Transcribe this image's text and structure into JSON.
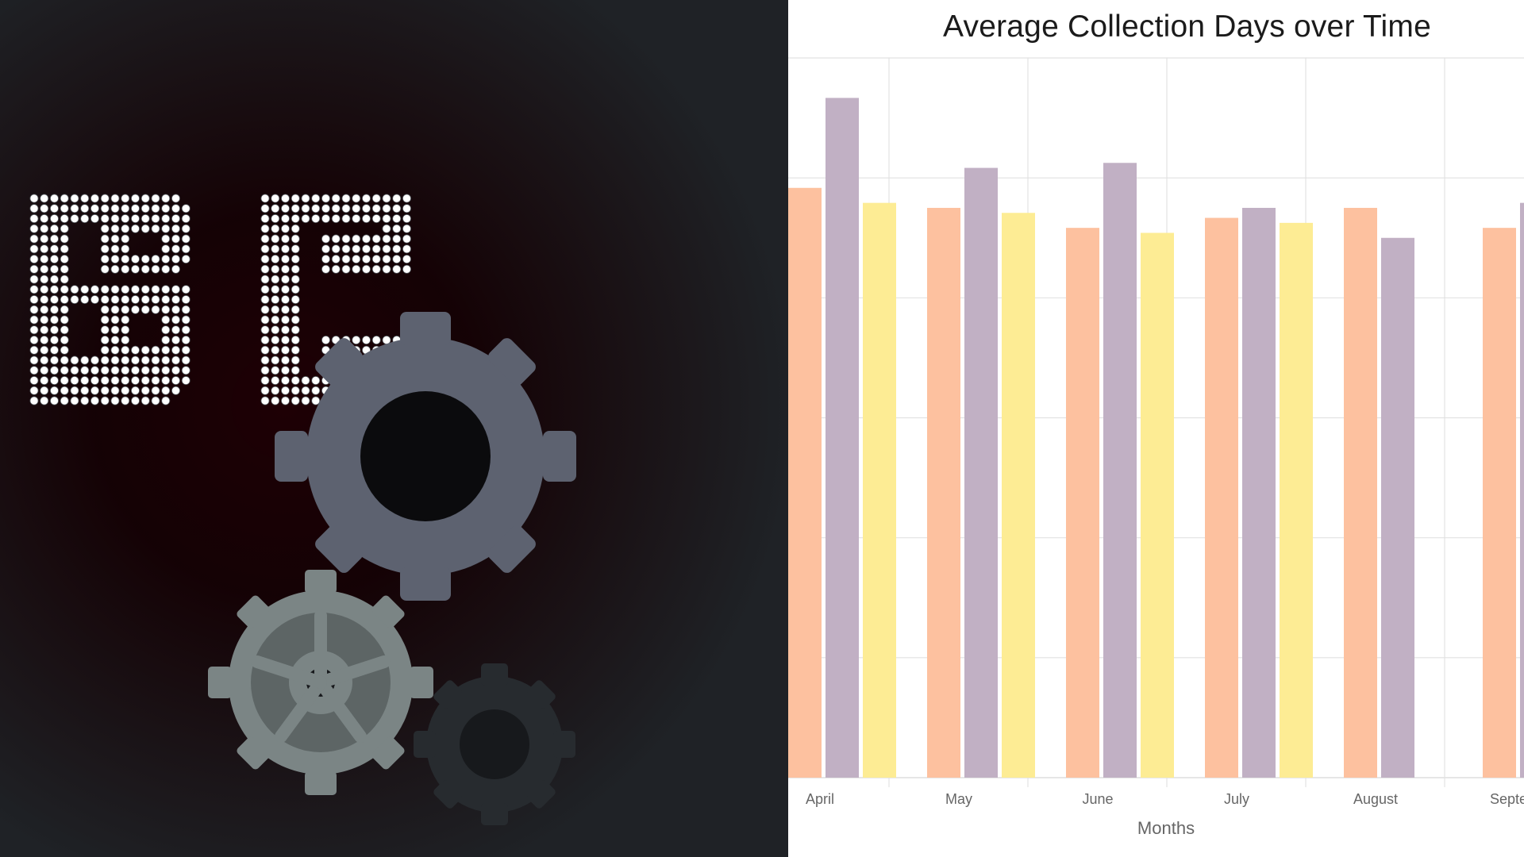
{
  "left_art": {
    "icons": [
      "dot-matrix-letters",
      "large-gear-icon",
      "medium-gear-icon",
      "small-gear-icon"
    ],
    "colors": {
      "background": "#1f2226",
      "dot_white": "#ffffff",
      "gear_large": "#5d6270",
      "gear_medium": "#7b8585",
      "gear_small": "#272b2f"
    }
  },
  "chart_data": {
    "type": "bar",
    "title": "Average Collection Days over Time",
    "xlabel": "Months",
    "ylabel": "",
    "categories": [
      "April",
      "May",
      "June",
      "July",
      "August",
      "Septem"
    ],
    "series": [
      {
        "values": [
          59,
          57,
          55,
          56,
          57,
          55
        ],
        "color": "#fdc19f"
      },
      {
        "values": [
          68,
          61,
          61.5,
          57,
          54,
          57.5
        ],
        "color": "#c1b0c4"
      },
      {
        "values": [
          57.5,
          56.5,
          54.5,
          55.5,
          null,
          null
        ],
        "color": "#fdec94"
      }
    ],
    "ylim": [
      0,
      72
    ],
    "grid": true
  }
}
